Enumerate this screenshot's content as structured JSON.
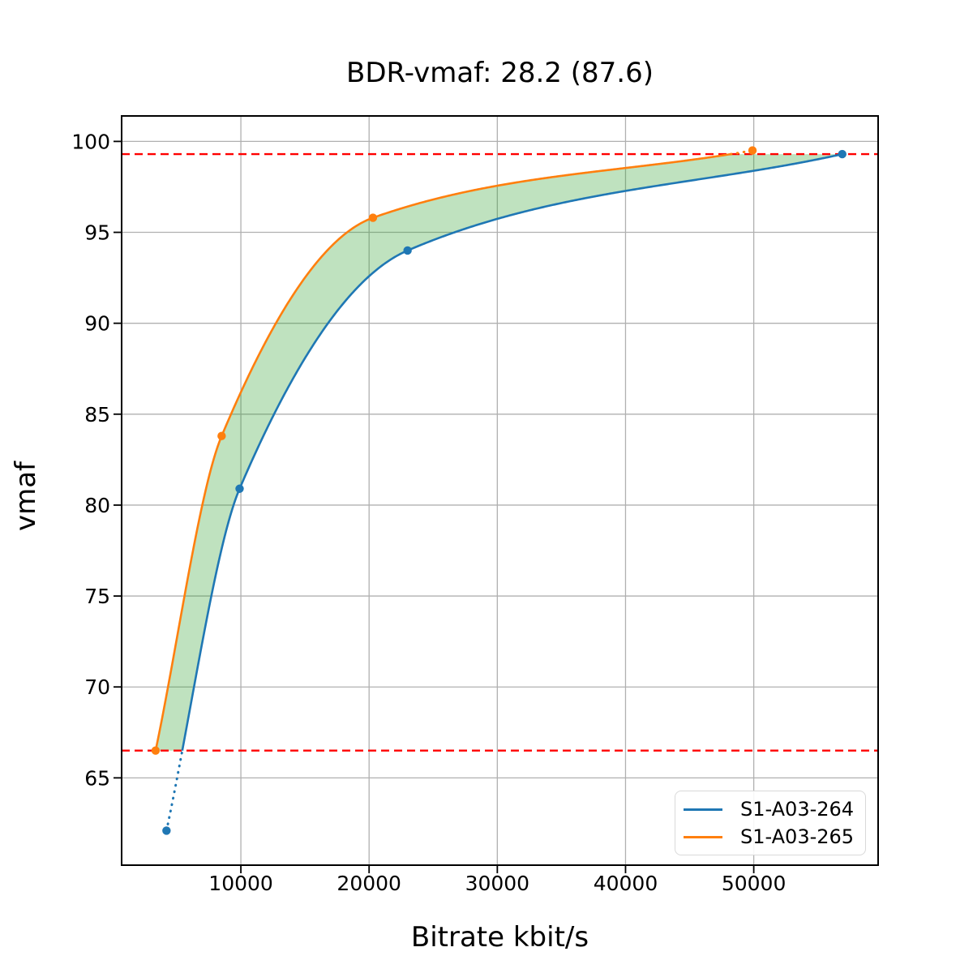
{
  "chart_data": {
    "type": "line",
    "title": "BDR-vmaf: 28.2 (87.6)",
    "xlabel": "Bitrate kbit/s",
    "ylabel": "vmaf",
    "xlim": [
      700,
      59700
    ],
    "ylim": [
      60.2,
      101.4
    ],
    "x_ticks": [
      10000,
      20000,
      30000,
      40000,
      50000
    ],
    "y_ticks": [
      65,
      70,
      75,
      80,
      85,
      90,
      95,
      100
    ],
    "grid": true,
    "legend_position": "lower-right",
    "series": [
      {
        "name": "S1-A03-264",
        "color": "#1f77b4",
        "points": [
          [
            4200,
            62.1
          ],
          [
            9900,
            80.9
          ],
          [
            23000,
            94.0
          ],
          [
            56900,
            99.3
          ]
        ]
      },
      {
        "name": "S1-A03-265",
        "color": "#ff7f0e",
        "points": [
          [
            3350,
            66.5
          ],
          [
            8500,
            83.8
          ],
          [
            20300,
            95.8
          ],
          [
            49900,
            99.5
          ]
        ]
      }
    ],
    "ref_lines": {
      "values": [
        66.5,
        99.3
      ],
      "color": "#ff0000",
      "style": "dashed"
    },
    "fill_between": {
      "color": "#2ca02c",
      "opacity": 0.3,
      "clip": [
        66.5,
        99.3
      ]
    }
  },
  "colors": {
    "grid": "#b0b0b0",
    "axis": "#000000",
    "background": "#ffffff",
    "legend_border": "#d9d9d9"
  }
}
